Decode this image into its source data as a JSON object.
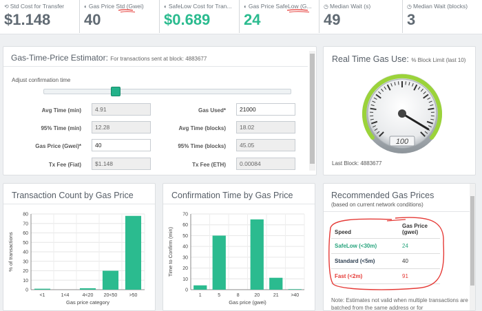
{
  "stats": [
    {
      "label": "Std Cost for Transfer",
      "icon": "dollar-icon",
      "value": "$1.148",
      "color": "gray"
    },
    {
      "label": "Gas Price Std (Gwei)",
      "icon": "gauge-icon",
      "value": "40",
      "color": "gray"
    },
    {
      "label": "SafeLow Cost for Tran...",
      "icon": "gauge-icon",
      "value": "$0.689",
      "color": "green"
    },
    {
      "label": "Gas Price SafeLow (G...",
      "icon": "gauge-icon",
      "value": "24",
      "color": "green"
    },
    {
      "label": "Median Wait (s)",
      "icon": "clock-icon",
      "value": "49",
      "color": "gray"
    },
    {
      "label": "Median Wait (blocks)",
      "icon": "clock-icon",
      "value": "3",
      "color": "gray"
    }
  ],
  "estimator": {
    "title": "Gas-Time-Price Estimator:",
    "subtitle": "For transactions sent at block: 4883677",
    "adjust_label": "Adjust confirmation time",
    "slider_value": 0.28,
    "fields": {
      "avg_time_min": {
        "label": "Avg Time (min)",
        "value": "4.91"
      },
      "gas_used": {
        "label": "Gas Used*",
        "value": "21000"
      },
      "pct95_time_min": {
        "label": "95% Time (min)",
        "value": "12.28"
      },
      "avg_time_blocks": {
        "label": "Avg Time (blocks)",
        "value": "18.02"
      },
      "gas_price_gwei": {
        "label": "Gas Price (Gwei)*",
        "value": "40"
      },
      "pct95_time_blocks": {
        "label": "95% Time (blocks)",
        "value": "45.05"
      },
      "tx_fee_fiat": {
        "label": "Tx Fee (Fiat)",
        "value": "$1.148"
      },
      "tx_fee_eth": {
        "label": "Tx Fee (ETH)",
        "value": "0.00084"
      }
    }
  },
  "realtime": {
    "title": "Real Time Gas Use:",
    "subtitle": "% Block Limit (last 10)",
    "gauge_readout": "100",
    "gauge_value": 100,
    "last_block": "Last Block: 4883677"
  },
  "chart_data": [
    {
      "type": "bar",
      "title": "Transaction Count by Gas Price",
      "xlabel": "Gas price category",
      "ylabel": "% of transactions",
      "categories": [
        "<1",
        "1<4",
        "4<20",
        "20<50",
        ">50"
      ],
      "values": [
        1,
        0,
        1.5,
        20,
        78
      ],
      "ylim": [
        0,
        80
      ],
      "yticks": [
        0,
        10,
        20,
        30,
        40,
        50,
        60,
        70,
        80
      ],
      "color": "#2bbb8f"
    },
    {
      "type": "bar",
      "title": "Confirmation Time by Gas Price",
      "xlabel": "Gas price (gwei)",
      "ylabel": "Time to Confirm (min)",
      "categories": [
        "1",
        "5",
        "8",
        "20",
        "21",
        ">40"
      ],
      "values": [
        4,
        50,
        0,
        65,
        11,
        0.5
      ],
      "ylim": [
        0,
        70
      ],
      "yticks": [
        0,
        10,
        20,
        30,
        40,
        50,
        60,
        70
      ],
      "color": "#2bbb8f"
    }
  ],
  "recommended": {
    "title": "Recommended Gas Prices",
    "subtitle": "(based on current network conditions)",
    "col_speed": "Speed",
    "col_price": "Gas Price (gwei)",
    "rows": [
      {
        "speed": "SafeLow (<30m)",
        "price": "24"
      },
      {
        "speed": "Standard (<5m)",
        "price": "40"
      },
      {
        "speed": "Fast (<2m)",
        "price": "91"
      }
    ],
    "note": "Note: Estimates not valid when multiple transactions are batched from the same address or for"
  },
  "colors": {
    "accent": "#2bbb8f",
    "annotation": "#e53935"
  }
}
